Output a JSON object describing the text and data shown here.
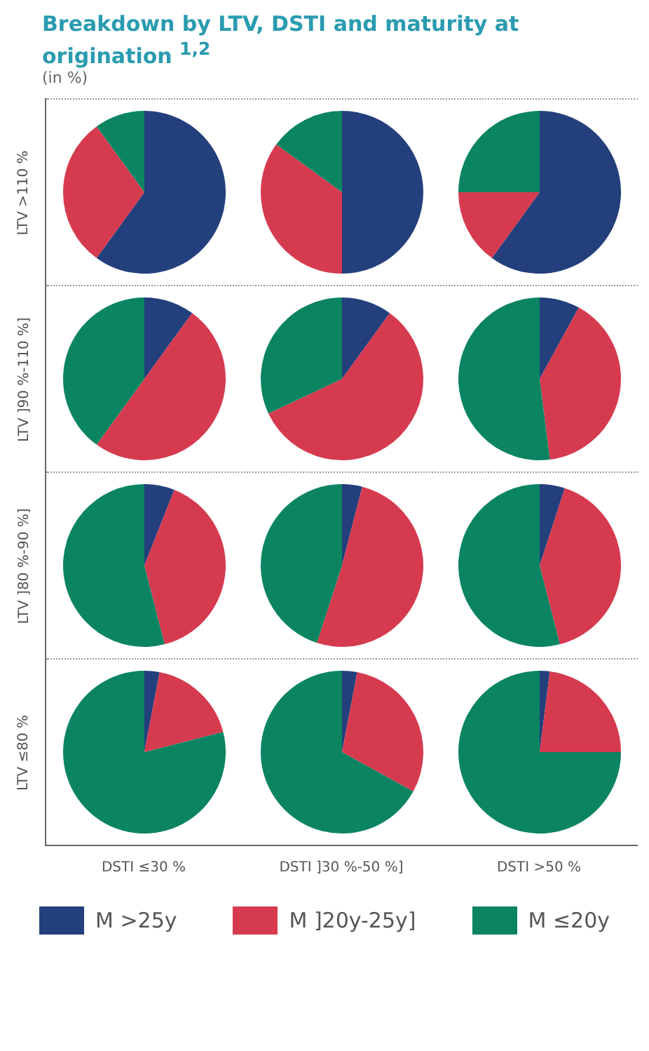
{
  "chart_data": [
    {
      "type": "pie",
      "title": "Breakdown by LTV, DSTI and maturity at origination $^{1,2}$",
      "subtitle": "(in %)",
      "ylabel": "LTV >110 %",
      "legend": "bottom",
      "categories": [
        "M >25y",
        "M ]20y-25y]",
        "M ≤20y"
      ],
      "values": [
        60,
        30,
        10
      ],
      "colors": [
        "#233f7c",
        "#d63a4f",
        "#0b8462"
      ]
    },
    {
      "type": "pie",
      "values": [
        50,
        35,
        15
      ],
      "colors": [
        "#233f7c",
        "#d63a4f",
        "#0b8462"
      ]
    },
    {
      "type": "pie",
      "values": [
        60,
        15,
        25
      ],
      "colors": [
        "#233f7c",
        "#d63a4f",
        "#0b8462"
      ]
    },
    {
      "type": "pie",
      "ylabel": "LTV ]90 %-110 %]",
      "values": [
        10,
        50,
        40
      ],
      "colors": [
        "#233f7c",
        "#d63a4f",
        "#0b8462"
      ]
    },
    {
      "type": "pie",
      "values": [
        10,
        58,
        32
      ],
      "colors": [
        "#233f7c",
        "#d63a4f",
        "#0b8462"
      ]
    },
    {
      "type": "pie",
      "values": [
        8,
        40,
        52
      ],
      "colors": [
        "#233f7c",
        "#d63a4f",
        "#0b8462"
      ]
    },
    {
      "type": "pie",
      "ylabel": "LTV ]80 %-90 %]",
      "values": [
        6,
        40,
        54
      ],
      "colors": [
        "#233f7c",
        "#d63a4f",
        "#0b8462"
      ]
    },
    {
      "type": "pie",
      "values": [
        4,
        51,
        45
      ],
      "colors": [
        "#233f7c",
        "#d63a4f",
        "#0b8462"
      ]
    },
    {
      "type": "pie",
      "values": [
        5,
        41,
        54
      ],
      "colors": [
        "#233f7c",
        "#d63a4f",
        "#0b8462"
      ]
    },
    {
      "type": "pie",
      "ylabel": "LTV ≤80 %",
      "xlabel": "DSTI ≤30 %",
      "values": [
        3,
        18,
        79
      ],
      "colors": [
        "#233f7c",
        "#d63a4f",
        "#0b8462"
      ]
    },
    {
      "type": "pie",
      "xlabel": "DSTI ]30 %-50 %]",
      "values": [
        3,
        30,
        67
      ],
      "colors": [
        "#233f7c",
        "#d63a4f",
        "#0b8462"
      ]
    },
    {
      "type": "pie",
      "xlabel": "DSTI >50 %",
      "values": [
        2,
        23,
        75
      ],
      "colors": [
        "#233f7c",
        "#d63a4f",
        "#0b8462"
      ]
    }
  ]
}
